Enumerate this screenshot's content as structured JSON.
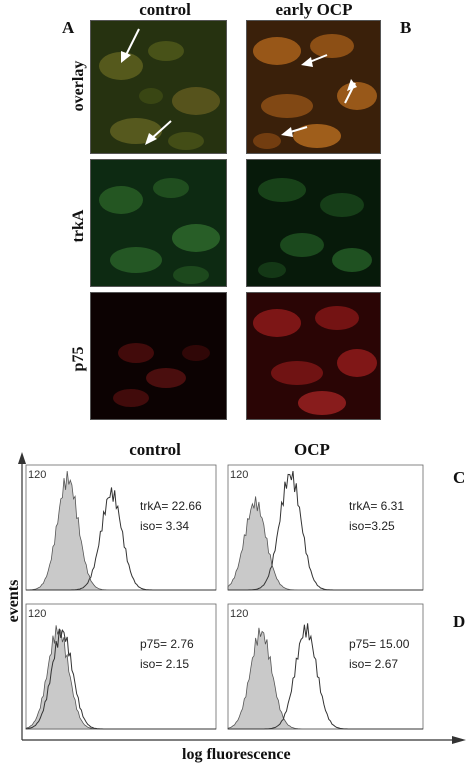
{
  "figure": {
    "panels": {
      "A": "A",
      "B": "B",
      "C": "C",
      "D": "D"
    },
    "micrographs": {
      "columns": [
        "control",
        "early OCP"
      ],
      "rows": [
        "overlay",
        "trkA",
        "p75"
      ],
      "colors": {
        "overlay_control": "#2d3a14",
        "overlay_ocp": "#4a2a0c",
        "trkA": "#0b2a10",
        "p75": "#2a0606"
      }
    },
    "flow": {
      "columns": [
        "control",
        "OCP"
      ],
      "y_axis_label": "events",
      "x_axis_label": "log fluorescence",
      "y_tick": "120",
      "stats": {
        "C_control": [
          "trkA= 22.66",
          "iso= 3.34"
        ],
        "C_ocp": [
          "trkA= 6.31",
          "iso=3.25"
        ],
        "D_control": [
          "p75= 2.76",
          "iso= 2.15"
        ],
        "D_ocp": [
          "p75= 15.00",
          "iso= 2.67"
        ]
      }
    }
  },
  "chart_data": [
    {
      "type": "area",
      "panel": "C",
      "column": "control",
      "ytick": 120,
      "series": [
        {
          "name": "iso",
          "peak_position": 0.22,
          "peak_height": 0.92,
          "filled": true
        },
        {
          "name": "trkA",
          "peak_position": 0.45,
          "peak_height": 0.8,
          "filled": false
        }
      ],
      "annotations": [
        "trkA= 22.66",
        "iso= 3.34"
      ]
    },
    {
      "type": "area",
      "panel": "C",
      "column": "OCP",
      "ytick": 120,
      "series": [
        {
          "name": "iso",
          "peak_position": 0.14,
          "peak_height": 0.72,
          "filled": true
        },
        {
          "name": "trkA",
          "peak_position": 0.32,
          "peak_height": 0.95,
          "filled": false
        }
      ],
      "annotations": [
        "trkA= 6.31",
        "iso=3.25"
      ]
    },
    {
      "type": "area",
      "panel": "D",
      "column": "control",
      "ytick": 120,
      "series": [
        {
          "name": "iso",
          "peak_position": 0.17,
          "peak_height": 0.82,
          "filled": true
        },
        {
          "name": "p75",
          "peak_position": 0.19,
          "peak_height": 0.8,
          "filled": false
        }
      ],
      "annotations": [
        "p75= 2.76",
        "iso= 2.15"
      ]
    },
    {
      "type": "area",
      "panel": "D",
      "column": "OCP",
      "ytick": 120,
      "series": [
        {
          "name": "iso",
          "peak_position": 0.17,
          "peak_height": 0.8,
          "filled": true
        },
        {
          "name": "p75",
          "peak_position": 0.4,
          "peak_height": 0.82,
          "filled": false
        }
      ],
      "annotations": [
        "p75= 15.00",
        "iso= 2.67"
      ]
    }
  ]
}
